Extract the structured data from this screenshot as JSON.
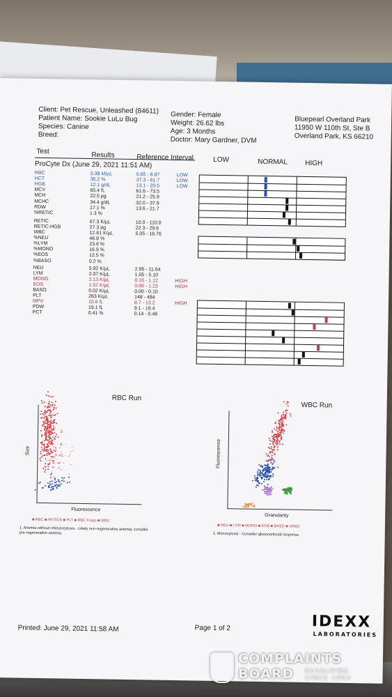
{
  "header": {
    "client": "Client: Pet Rescue, Unleashed (84611)",
    "patient": "Patient Name: Sookie LuLu Bug",
    "species": "Species: Canine",
    "breed": "Breed:",
    "gender": "Gender: Female",
    "weight": "Weight: 26.62 lbs",
    "age": "Age: 3 Months",
    "doctor": "Doctor: Mary Gardner, DVM",
    "clinic_name": "Bluepearl Overland Park",
    "clinic_street": "11950 W 110th St, Ste B",
    "clinic_city": "Overland Park, KS 66210"
  },
  "columns": {
    "test": "Test",
    "results": "Results",
    "reference": "Reference Interval",
    "low": "LOW",
    "normal": "NORMAL",
    "high": "HIGH"
  },
  "run_title": "ProCyte Dx (June 29, 2021 11:51 AM)",
  "rows": [
    {
      "name": "RBC",
      "result": "5.38 M/µL",
      "ref": "5.65 - 8.87",
      "flag": "LOW",
      "color": "blue"
    },
    {
      "name": "HCT",
      "result": "35.2 %",
      "ref": "37.3 - 61.7",
      "flag": "LOW",
      "color": "blue"
    },
    {
      "name": "HGB",
      "result": "12.1 g/dL",
      "ref": "13.1 - 20.5",
      "flag": "LOW",
      "color": "blue"
    },
    {
      "name": "MCV",
      "result": "65.4 fL",
      "ref": "61.6 - 73.5",
      "flag": "",
      "color": "black"
    },
    {
      "name": "MCH",
      "result": "22.5 pg",
      "ref": "21.2 - 25.9",
      "flag": "",
      "color": "black"
    },
    {
      "name": "MCHC",
      "result": "34.4 g/dL",
      "ref": "32.0 - 37.9",
      "flag": "",
      "color": "black"
    },
    {
      "name": "RDW",
      "result": "17.1 %",
      "ref": "13.6 - 21.7",
      "flag": "",
      "color": "black"
    },
    {
      "name": "%RETIC",
      "result": "1.3 %",
      "ref": "",
      "flag": "",
      "color": "black"
    },
    {
      "name": "RETIC",
      "result": "67.3 K/µL",
      "ref": "10.0 - 110.0",
      "flag": "",
      "color": "black"
    },
    {
      "name": "RETIC-HGB",
      "result": "27.3 pg",
      "ref": "22.3 - 29.6",
      "flag": "",
      "color": "black"
    },
    {
      "name": "WBC",
      "result": "12.61 K/µL",
      "ref": "5.05 - 16.76",
      "flag": "",
      "color": "black"
    },
    {
      "name": "%NEU",
      "result": "46.8 %",
      "ref": "",
      "flag": "",
      "color": "black"
    },
    {
      "name": "%LYM",
      "result": "23.6 %",
      "ref": "",
      "flag": "",
      "color": "black"
    },
    {
      "name": "%MONO",
      "result": "16.9 %",
      "ref": "",
      "flag": "",
      "color": "black"
    },
    {
      "name": "%EOS",
      "result": "12.5 %",
      "ref": "",
      "flag": "",
      "color": "black"
    },
    {
      "name": "%BASO",
      "result": "0.2 %",
      "ref": "",
      "flag": "",
      "color": "black"
    },
    {
      "name": "NEU",
      "result": "5.92 K/µL",
      "ref": "2.95 - 11.64",
      "flag": "",
      "color": "black"
    },
    {
      "name": "LYM",
      "result": "2.97 K/µL",
      "ref": "1.05 - 5.10",
      "flag": "",
      "color": "black"
    },
    {
      "name": "MONO",
      "result": "2.13 K/µL",
      "ref": "0.16 - 1.12",
      "flag": "HIGH",
      "color": "red"
    },
    {
      "name": "EOS",
      "result": "1.57 K/µL",
      "ref": "0.06 - 1.23",
      "flag": "HIGH",
      "color": "red"
    },
    {
      "name": "BASO",
      "result": "0.02 K/µL",
      "ref": "0.00 - 0.10",
      "flag": "",
      "color": "black"
    },
    {
      "name": "PLT",
      "result": "263 K/µL",
      "ref": "148 - 484",
      "flag": "",
      "color": "black"
    },
    {
      "name": "MPV",
      "result": "15.6 fL",
      "ref": "8.7 - 13.2",
      "flag": "HIGH",
      "color": "red"
    },
    {
      "name": "PDW",
      "result": "19.1 fL",
      "ref": "9.1 - 19.4",
      "flag": "",
      "color": "black"
    },
    {
      "name": "PCT",
      "result": "0.41 %",
      "ref": "0.14 - 0.46",
      "flag": "",
      "color": "black"
    }
  ],
  "marker_levels": {
    "RBC": 0.45,
    "HCT": 0.45,
    "HGB": 0.45,
    "MCV": 0.6,
    "MCH": 0.6,
    "MCHC": 0.58,
    "RDW": 0.62,
    "RETIC": 0.65,
    "RETIC-HGB": 0.68,
    "WBC": 0.7,
    "NEU": 0.63,
    "LYM": 0.65,
    "MONO": 0.88,
    "EOS": 0.8,
    "BASO": 0.52,
    "PLT": 0.59,
    "MPV": 0.83,
    "PDW": 0.73,
    "PCT": 0.7
  },
  "rbc_plot": {
    "title": "RBC Run",
    "ylabel": "Size",
    "xlabel": "Fluorescence",
    "legend": "■ RBC ■ RETICS ■ PLT ■ RBC Frags ■ WBC",
    "note1": "1. Anemia without reticulocytosis - Likely non-regenerative anemia; consider",
    "note2": "pre-regenerative anemia."
  },
  "wbc_plot": {
    "title": "WBC Run",
    "ylabel": "Fluorescence",
    "xlabel": "Granularity",
    "legend": "■ NEU ■ LYM ■ MONO ■ EOS ■ BASO ■ URBC",
    "note1": "1. Monocytosis - Consider glucocorticoid response."
  },
  "footer": {
    "printed": "Printed: June 29, 2021 11:58 AM",
    "page": "Page 1 of 2",
    "logo_top": "IDEXX",
    "logo_bottom": "LABORATORIES"
  },
  "watermark": {
    "line1": "COMPLAINTS",
    "line2": "BOARD",
    "line3": "RESOLVING",
    "line4": "SINCE 2004"
  },
  "colors": {
    "low": "#2a55b8",
    "high": "#c0303a",
    "rbc_dots": "#d83a3a",
    "wbc_dots": "#2a4fb8"
  }
}
